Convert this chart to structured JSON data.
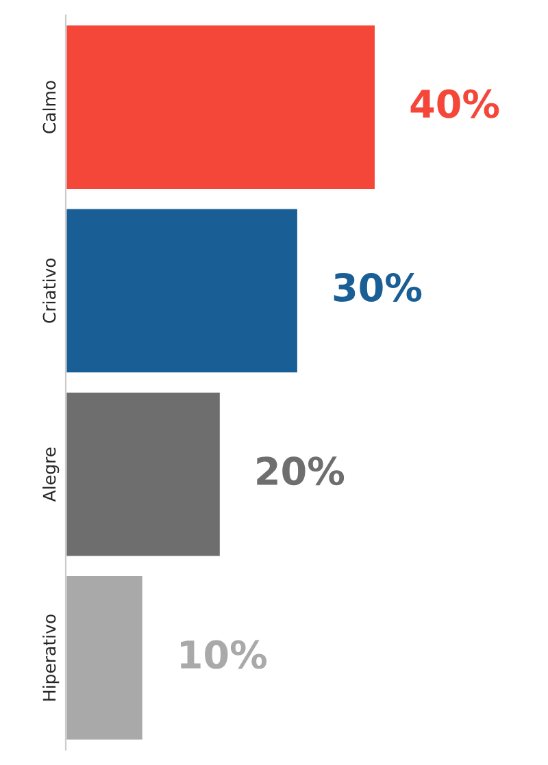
{
  "chart_data": {
    "type": "bar",
    "orientation": "horizontal",
    "categories": [
      "Calmo",
      "Criativo",
      "Alegre",
      "Hiperativo"
    ],
    "values": [
      40,
      30,
      20,
      10
    ],
    "colors": [
      "#f4473a",
      "#1a5e96",
      "#6e6e6e",
      "#a9a9a9"
    ],
    "value_labels": [
      "40%",
      "30%",
      "20%",
      "10%"
    ],
    "tick_labels": "y",
    "grid": false,
    "legend": false
  }
}
